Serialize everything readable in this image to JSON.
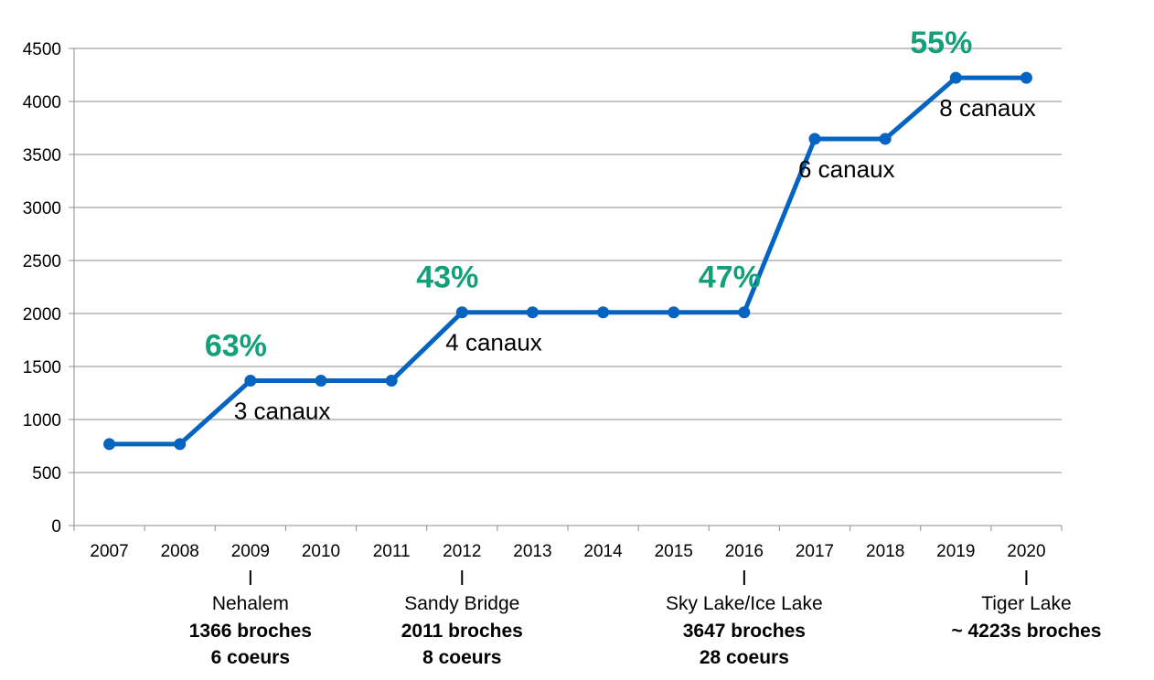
{
  "chart_data": {
    "type": "line",
    "x": [
      "2007",
      "2008",
      "2009",
      "2010",
      "2011",
      "2012",
      "2013",
      "2014",
      "2015",
      "2016",
      "2017",
      "2018",
      "2019",
      "2020"
    ],
    "series": [
      {
        "values": [
          768,
          768,
          1366,
          1366,
          1366,
          2011,
          2011,
          2011,
          2011,
          2011,
          3647,
          3647,
          4223,
          4223
        ]
      }
    ],
    "ylim": [
      0,
      4500
    ],
    "yticks": [
      "0",
      "500",
      "1000",
      "1500",
      "2000",
      "2500",
      "3000",
      "3500",
      "4000",
      "4500"
    ],
    "grid": true,
    "line_color": "#0563C1",
    "percent_color": "#12A07A",
    "growth_labels": [
      {
        "x": "2009",
        "text": "63%"
      },
      {
        "x": "2012",
        "text": "43%"
      },
      {
        "x": "2016",
        "text": "47%"
      },
      {
        "x": "2019",
        "text": "55%"
      }
    ],
    "channel_labels": [
      {
        "x": "2009",
        "text": "3 canaux"
      },
      {
        "x": "2012",
        "text": "4 canaux"
      },
      {
        "x": "2017",
        "text": "6 canaux"
      },
      {
        "x": "2019",
        "text": "8 canaux"
      }
    ],
    "milestones": [
      {
        "x": "2009",
        "name": "Nehalem",
        "pins": "1366 broches",
        "cores": "6 coeurs"
      },
      {
        "x": "2012",
        "name": "Sandy Bridge",
        "pins": "2011 broches",
        "cores": "8 coeurs"
      },
      {
        "x": "2016",
        "name": "Sky Lake/Ice Lake",
        "pins": "3647 broches",
        "cores": "28 coeurs"
      },
      {
        "x": "2020",
        "name": "Tiger Lake",
        "pins": "~ 4223s broches",
        "cores": ""
      }
    ]
  }
}
